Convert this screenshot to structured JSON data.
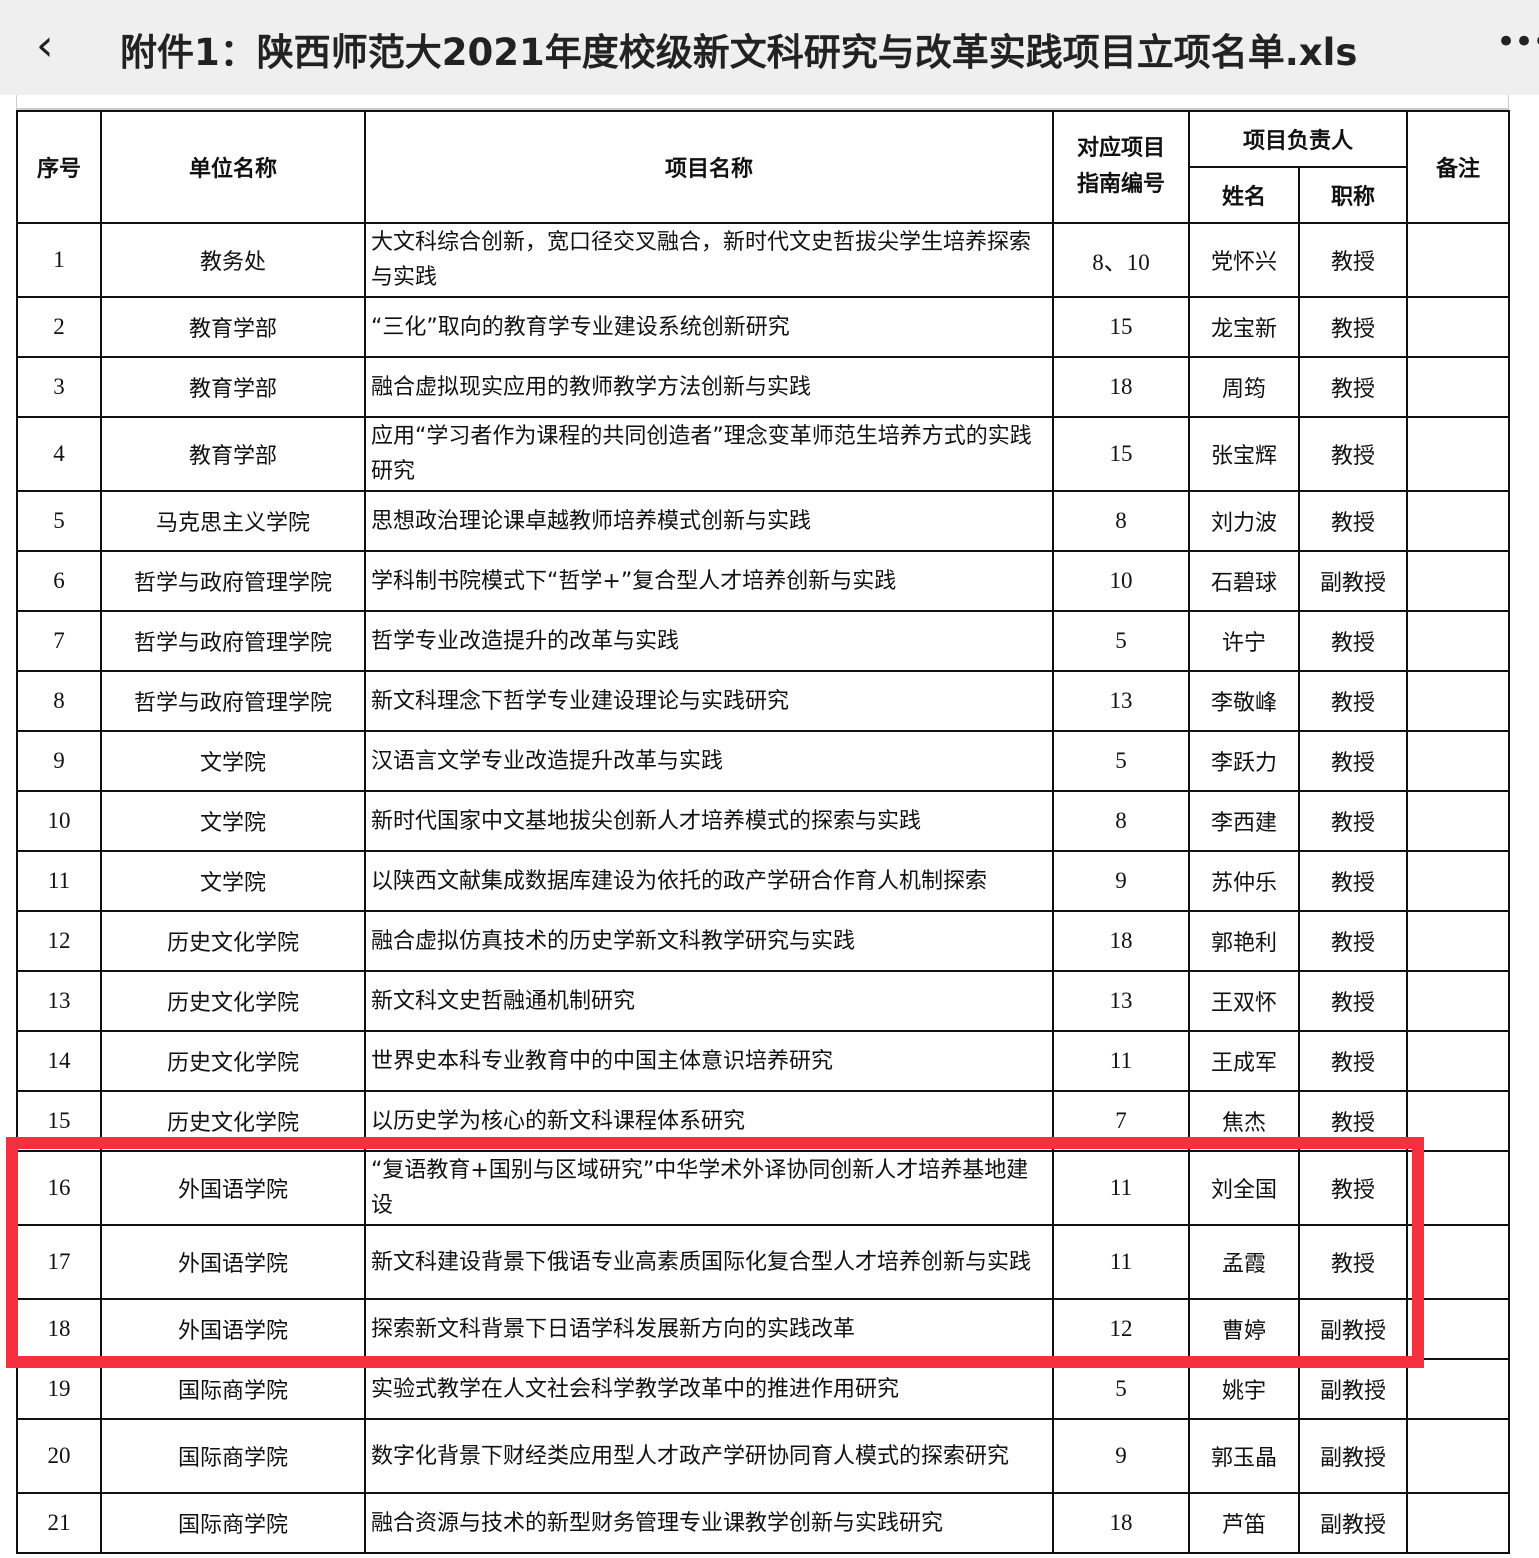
{
  "header": {
    "back_icon": "chevron-left-icon",
    "title": "附件1：陕西师范大2021年度校级新文科研究与改革实践项目立项名单.xls",
    "more_icon": "ellipsis-icon"
  },
  "table": {
    "columns": {
      "seq": "序号",
      "unit": "单位名称",
      "project": "项目名称",
      "guide": "对应项目指南编号",
      "leader": "项目负责人",
      "name": "姓名",
      "title": "职称",
      "note": "备注"
    },
    "rows": [
      {
        "seq": "1",
        "unit": "教务处",
        "project": "大文科综合创新，宽口径交叉融合，新时代文史哲拔尖学生培养探索与实践",
        "guide": "8、10",
        "name": "党怀兴",
        "title": "教授"
      },
      {
        "seq": "2",
        "unit": "教育学部",
        "project": "“三化”取向的教育学专业建设系统创新研究",
        "guide": "15",
        "name": "龙宝新",
        "title": "教授"
      },
      {
        "seq": "3",
        "unit": "教育学部",
        "project": "融合虚拟现实应用的教师教学方法创新与实践",
        "guide": "18",
        "name": "周筠",
        "title": "教授"
      },
      {
        "seq": "4",
        "unit": "教育学部",
        "project": "应用“学习者作为课程的共同创造者”理念变革师范生培养方式的实践研究",
        "guide": "15",
        "name": "张宝辉",
        "title": "教授"
      },
      {
        "seq": "5",
        "unit": "马克思主义学院",
        "project": "思想政治理论课卓越教师培养模式创新与实践",
        "guide": "8",
        "name": "刘力波",
        "title": "教授"
      },
      {
        "seq": "6",
        "unit": "哲学与政府管理学院",
        "project": "学科制书院模式下“哲学+”复合型人才培养创新与实践",
        "guide": "10",
        "name": "石碧球",
        "title": "副教授"
      },
      {
        "seq": "7",
        "unit": "哲学与政府管理学院",
        "project": "哲学专业改造提升的改革与实践",
        "guide": "5",
        "name": "许宁",
        "title": "教授"
      },
      {
        "seq": "8",
        "unit": "哲学与政府管理学院",
        "project": "新文科理念下哲学专业建设理论与实践研究",
        "guide": "13",
        "name": "李敬峰",
        "title": "教授"
      },
      {
        "seq": "9",
        "unit": "文学院",
        "project": "汉语言文学专业改造提升改革与实践",
        "guide": "5",
        "name": "李跃力",
        "title": "教授"
      },
      {
        "seq": "10",
        "unit": "文学院",
        "project": "新时代国家中文基地拔尖创新人才培养模式的探索与实践",
        "guide": "8",
        "name": "李西建",
        "title": "教授"
      },
      {
        "seq": "11",
        "unit": "文学院",
        "project": "以陕西文献集成数据库建设为依托的政产学研合作育人机制探索",
        "guide": "9",
        "name": "苏仲乐",
        "title": "教授"
      },
      {
        "seq": "12",
        "unit": "历史文化学院",
        "project": "融合虚拟仿真技术的历史学新文科教学研究与实践",
        "guide": "18",
        "name": "郭艳利",
        "title": "教授"
      },
      {
        "seq": "13",
        "unit": "历史文化学院",
        "project": "新文科文史哲融通机制研究",
        "guide": "13",
        "name": "王双怀",
        "title": "教授"
      },
      {
        "seq": "14",
        "unit": "历史文化学院",
        "project": "世界史本科专业教育中的中国主体意识培养研究",
        "guide": "11",
        "name": "王成军",
        "title": "教授"
      },
      {
        "seq": "15",
        "unit": "历史文化学院",
        "project": "以历史学为核心的新文科课程体系研究",
        "guide": "7",
        "name": "焦杰",
        "title": "教授"
      },
      {
        "seq": "16",
        "unit": "外国语学院",
        "project": "“复语教育+国别与区域研究”中华学术外译协同创新人才培养基地建设",
        "guide": "11",
        "name": "刘全国",
        "title": "教授"
      },
      {
        "seq": "17",
        "unit": "外国语学院",
        "project": "新文科建设背景下俄语专业高素质国际化复合型人才培养创新与实践",
        "guide": "11",
        "name": "孟霞",
        "title": "教授"
      },
      {
        "seq": "18",
        "unit": "外国语学院",
        "project": "探索新文科背景下日语学科发展新方向的实践改革",
        "guide": "12",
        "name": "曹婷",
        "title": "副教授"
      },
      {
        "seq": "19",
        "unit": "国际商学院",
        "project": "实验式教学在人文社会科学教学改革中的推进作用研究",
        "guide": "5",
        "name": "姚宇",
        "title": "副教授"
      },
      {
        "seq": "20",
        "unit": "国际商学院",
        "project": "数字化背景下财经类应用型人才政产学研协同育人模式的探索研究",
        "guide": "9",
        "name": "郭玉晶",
        "title": "副教授"
      },
      {
        "seq": "21",
        "unit": "国际商学院",
        "project": "融合资源与技术的新型财务管理专业课教学创新与实践研究",
        "guide": "18",
        "name": "芦笛",
        "title": "副教授"
      }
    ]
  },
  "highlight_color": "#f5303e"
}
